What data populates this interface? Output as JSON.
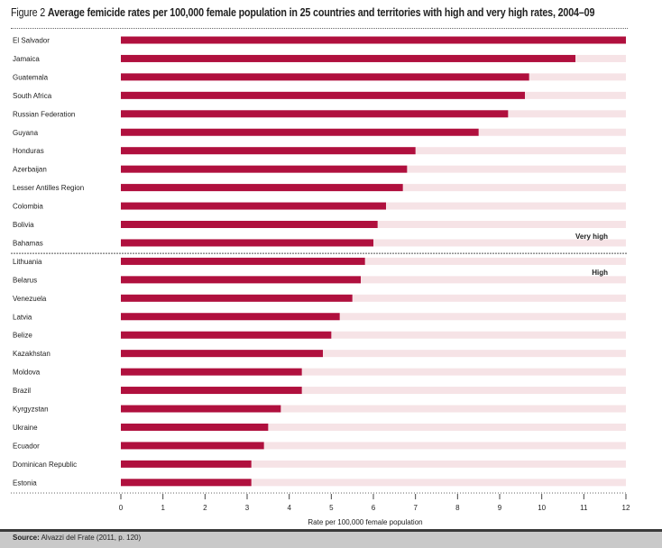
{
  "figure": {
    "label": "Figure 2",
    "title": "Average femicide rates per 100,000 female population in 25 countries and territories with high and very high rates, 2004–09"
  },
  "source": {
    "label": "Source:",
    "text": "Alvazzi del Frate (2011, p. 120)"
  },
  "chart_data": {
    "type": "bar",
    "orientation": "horizontal",
    "categories": [
      "El Salvador",
      "Jamaica",
      "Guatemala",
      "South Africa",
      "Russian Federation",
      "Guyana",
      "Honduras",
      "Azerbaijan",
      "Lesser Antilles Region",
      "Colombia",
      "Bolivia",
      "Bahamas",
      "Lithuania",
      "Belarus",
      "Venezuela",
      "Latvia",
      "Belize",
      "Kazakhstan",
      "Moldova",
      "Brazil",
      "Kyrgyzstan",
      "Ukraine",
      "Ecuador",
      "Dominican Republic",
      "Estonia"
    ],
    "values": [
      12.0,
      10.8,
      9.7,
      9.6,
      9.2,
      8.5,
      7.0,
      6.8,
      6.7,
      6.3,
      6.1,
      6.0,
      5.8,
      5.7,
      5.5,
      5.2,
      5.0,
      4.8,
      4.3,
      4.3,
      3.8,
      3.5,
      3.4,
      3.1,
      3.1
    ],
    "xlabel": "Rate per 100,000 female population",
    "xlim": [
      0,
      12
    ],
    "xticks": [
      "0",
      "1",
      "2",
      "3",
      "4",
      "5",
      "6",
      "7",
      "8",
      "9",
      "10",
      "11",
      "12"
    ],
    "groups": [
      {
        "label": "Very high",
        "count": 12
      },
      {
        "label": "High",
        "count": 13
      }
    ],
    "colors": {
      "bar": "#b0103e",
      "track": "#f6e3e6",
      "text": "#222222"
    }
  }
}
